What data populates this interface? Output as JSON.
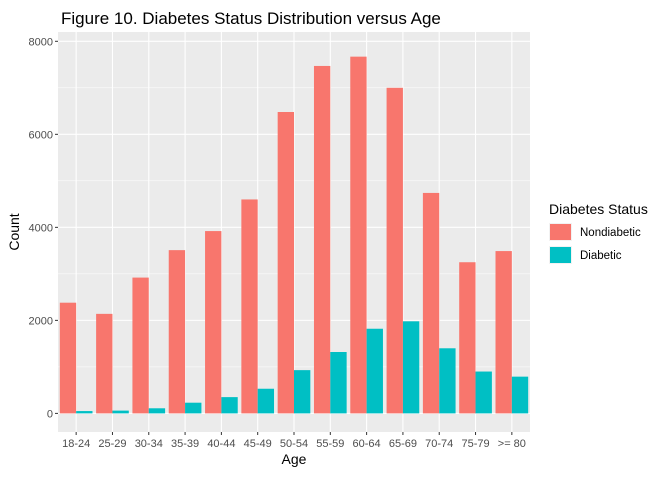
{
  "chart_data": {
    "type": "bar",
    "title": "Figure 10. Diabetes Status Distribution versus Age",
    "xlabel": "Age",
    "ylabel": "Count",
    "categories": [
      "18-24",
      "25-29",
      "30-34",
      "35-39",
      "40-44",
      "45-49",
      "50-54",
      "55-59",
      "60-64",
      "65-69",
      "70-74",
      "75-79",
      ">= 80"
    ],
    "series": [
      {
        "name": "Nondiabetic",
        "color": "#F8766D",
        "values": [
          2380,
          2140,
          2920,
          3510,
          3920,
          4600,
          6480,
          7470,
          7670,
          7000,
          4740,
          3250,
          3490
        ]
      },
      {
        "name": "Diabetic",
        "color": "#00BFC4",
        "values": [
          50,
          60,
          110,
          230,
          350,
          530,
          930,
          1320,
          1820,
          1980,
          1400,
          900,
          790
        ]
      }
    ],
    "ylim": [
      -400,
      8200
    ],
    "yticks": [
      0,
      2000,
      4000,
      6000,
      8000
    ],
    "grid": true,
    "panel_background": "#EBEBEB",
    "legend": {
      "title": "Diabetes Status",
      "position": "right"
    }
  }
}
